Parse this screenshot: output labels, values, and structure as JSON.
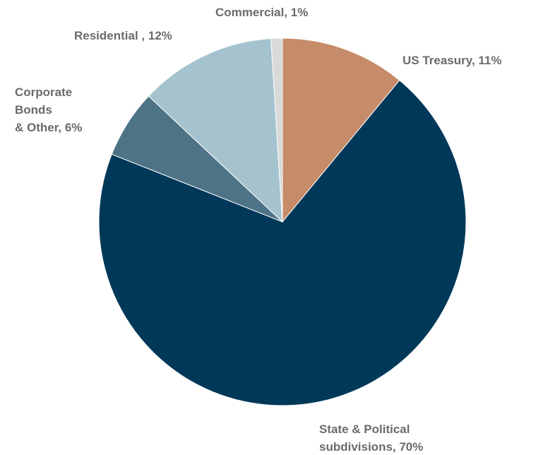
{
  "chart_data": {
    "type": "pie",
    "title": "",
    "start_angle_deg": 0,
    "direction": "clockwise",
    "slices": [
      {
        "label": "US Treasury",
        "value": 11,
        "display": "US Treasury, 11%",
        "color": "#c68b68"
      },
      {
        "label": "State & Political subdivisions",
        "value": 70,
        "display": "State & Political subdivisions, 70%",
        "color": "#003859"
      },
      {
        "label": "Corporate Bonds & Other",
        "value": 6,
        "display": "Corporate Bonds & Other, 6%",
        "color": "#4e7387"
      },
      {
        "label": "Residential",
        "value": 12,
        "display": "Residential , 12%",
        "color": "#a4c3ce"
      },
      {
        "label": "Commercial",
        "value": 1,
        "display": "Commercial, 1%",
        "color": "#d9d9d9"
      }
    ]
  }
}
